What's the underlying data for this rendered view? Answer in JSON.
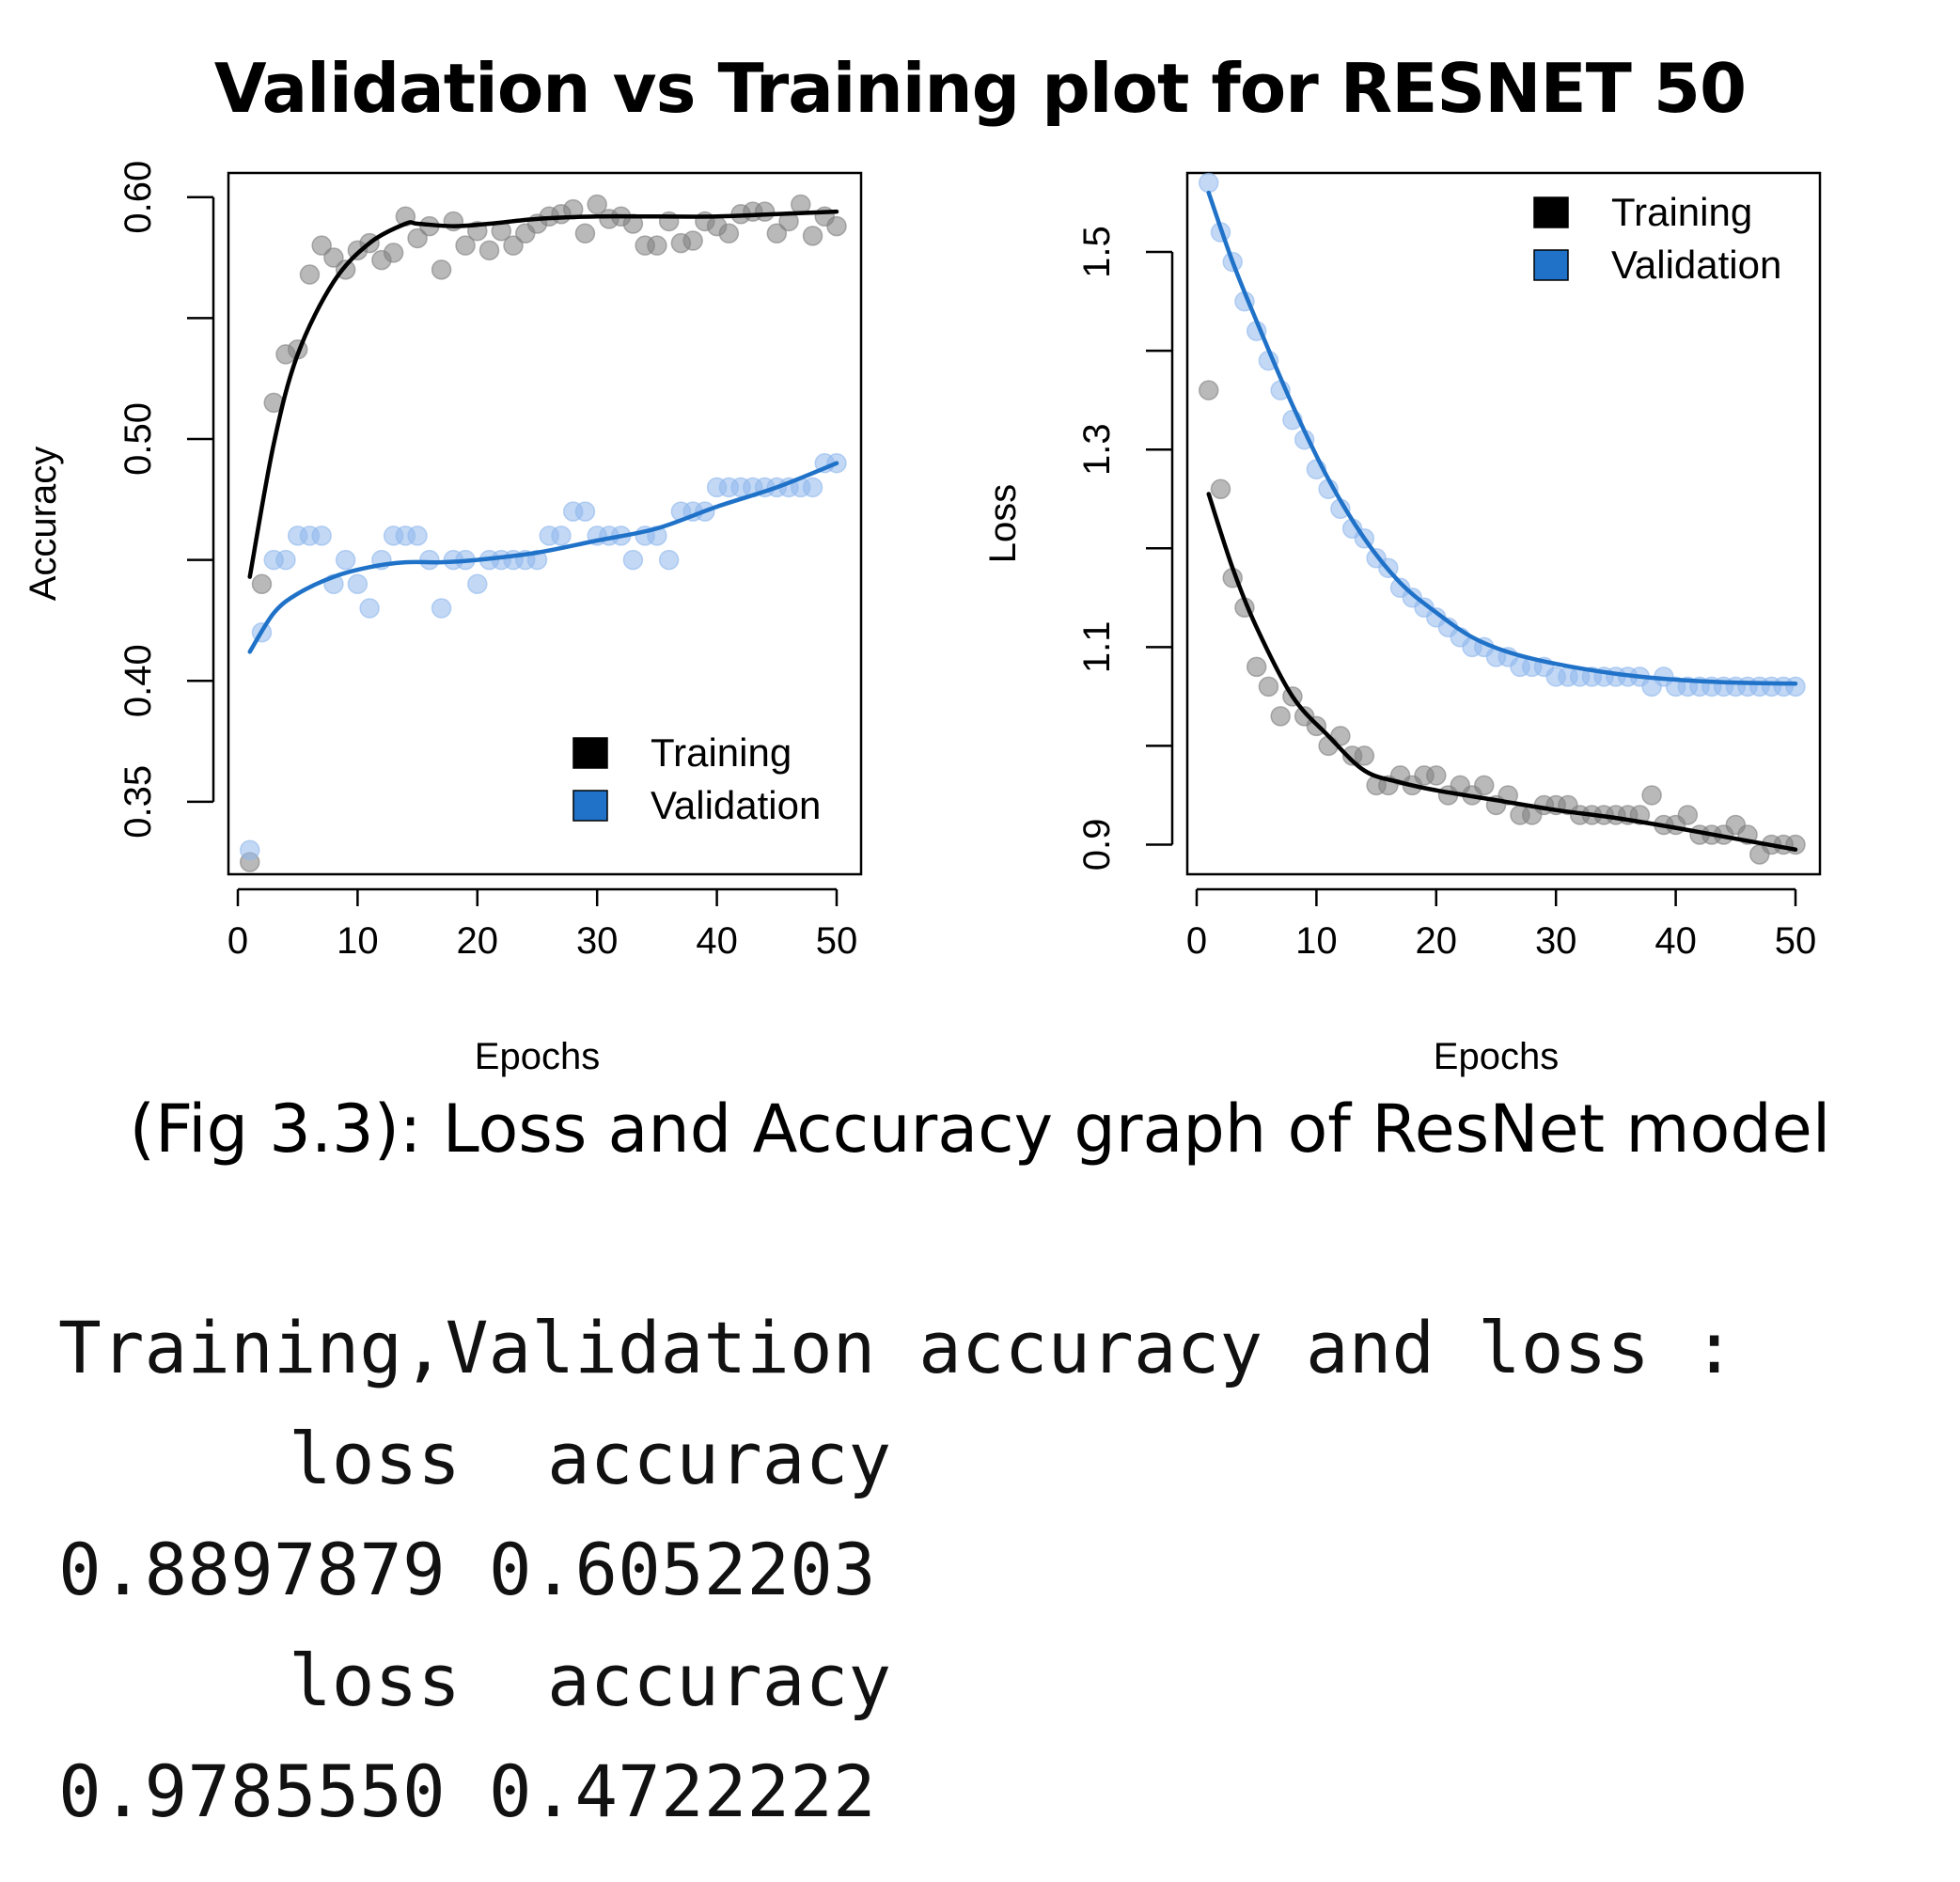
{
  "title": "Validation vs Training plot for RESNET 50",
  "caption": "(Fig 3.3): Loss and Accuracy graph of ResNet model",
  "colors": {
    "training": "#000000",
    "validation": "#1f72c8",
    "training_point": "#7f7f7f",
    "validation_point": "#8fb8ec"
  },
  "chart_data": [
    {
      "type": "scatter",
      "ylabel": "Accuracy",
      "xlabel": "Epochs",
      "xlim": [
        0,
        50
      ],
      "ylim": [
        0.32,
        0.61
      ],
      "xticks": [
        "0",
        "10",
        "20",
        "30",
        "40",
        "50"
      ],
      "yticks": [
        "0.35",
        "0.40",
        "0.50",
        "0.60"
      ],
      "ytick_marks": [
        0.35,
        0.4,
        0.45,
        0.5,
        0.55,
        0.6
      ],
      "legend": {
        "position": "bottom-right",
        "entries": [
          "Training",
          "Validation"
        ]
      },
      "series": [
        {
          "name": "Training",
          "x": [
            1,
            2,
            3,
            4,
            5,
            6,
            7,
            8,
            9,
            10,
            11,
            12,
            13,
            14,
            15,
            16,
            17,
            18,
            19,
            20,
            21,
            22,
            23,
            24,
            25,
            26,
            27,
            28,
            29,
            30,
            31,
            32,
            33,
            34,
            35,
            36,
            37,
            38,
            39,
            40,
            41,
            42,
            43,
            44,
            45,
            46,
            47,
            48,
            49,
            50
          ],
          "values": [
            0.325,
            0.44,
            0.515,
            0.535,
            0.537,
            0.568,
            0.58,
            0.575,
            0.57,
            0.578,
            0.581,
            0.574,
            0.577,
            0.592,
            0.583,
            0.588,
            0.57,
            0.59,
            0.58,
            0.586,
            0.578,
            0.586,
            0.58,
            0.585,
            0.589,
            0.592,
            0.593,
            0.595,
            0.585,
            0.597,
            0.591,
            0.592,
            0.589,
            0.58,
            0.58,
            0.59,
            0.581,
            0.582,
            0.59,
            0.588,
            0.585,
            0.593,
            0.594,
            0.594,
            0.585,
            0.59,
            0.597,
            0.584,
            0.592,
            0.588
          ],
          "trend": [
            [
              1,
              0.443
            ],
            [
              3,
              0.498
            ],
            [
              5,
              0.535
            ],
            [
              8,
              0.565
            ],
            [
              11,
              0.581
            ],
            [
              14,
              0.589
            ],
            [
              15,
              0.589
            ],
            [
              18,
              0.588
            ],
            [
              21,
              0.589
            ],
            [
              25,
              0.591
            ],
            [
              30,
              0.592
            ],
            [
              35,
              0.592
            ],
            [
              40,
              0.592
            ],
            [
              45,
              0.593
            ],
            [
              50,
              0.594
            ]
          ]
        },
        {
          "name": "Validation",
          "x": [
            1,
            2,
            3,
            4,
            5,
            6,
            7,
            8,
            9,
            10,
            11,
            12,
            13,
            14,
            15,
            16,
            17,
            18,
            19,
            20,
            21,
            22,
            23,
            24,
            25,
            26,
            27,
            28,
            29,
            30,
            31,
            32,
            33,
            34,
            35,
            36,
            37,
            38,
            39,
            40,
            41,
            42,
            43,
            44,
            45,
            46,
            47,
            48,
            49,
            50
          ],
          "values": [
            0.33,
            0.42,
            0.45,
            0.45,
            0.46,
            0.46,
            0.46,
            0.44,
            0.45,
            0.44,
            0.43,
            0.45,
            0.46,
            0.46,
            0.46,
            0.45,
            0.43,
            0.45,
            0.45,
            0.44,
            0.45,
            0.45,
            0.45,
            0.45,
            0.45,
            0.46,
            0.46,
            0.47,
            0.47,
            0.46,
            0.46,
            0.46,
            0.45,
            0.46,
            0.46,
            0.45,
            0.47,
            0.47,
            0.47,
            0.48,
            0.48,
            0.48,
            0.48,
            0.48,
            0.48,
            0.48,
            0.48,
            0.48,
            0.49,
            0.49
          ],
          "trend": [
            [
              1,
              0.412
            ],
            [
              3,
              0.428
            ],
            [
              5,
              0.436
            ],
            [
              8,
              0.443
            ],
            [
              11,
              0.447
            ],
            [
              14,
              0.449
            ],
            [
              17,
              0.449
            ],
            [
              20,
              0.45
            ],
            [
              25,
              0.453
            ],
            [
              30,
              0.458
            ],
            [
              35,
              0.463
            ],
            [
              40,
              0.472
            ],
            [
              45,
              0.48
            ],
            [
              50,
              0.49
            ]
          ]
        }
      ]
    },
    {
      "type": "scatter",
      "ylabel": "Loss",
      "xlabel": "Epochs",
      "xlim": [
        0,
        50
      ],
      "ylim": [
        0.87,
        1.58
      ],
      "xticks": [
        "0",
        "10",
        "20",
        "30",
        "40",
        "50"
      ],
      "yticks": [
        "0.9",
        "1.1",
        "1.3",
        "1.5"
      ],
      "ytick_marks": [
        0.9,
        1.0,
        1.1,
        1.2,
        1.3,
        1.4,
        1.5
      ],
      "legend": {
        "position": "top-right",
        "entries": [
          "Training",
          "Validation"
        ]
      },
      "series": [
        {
          "name": "Training",
          "x": [
            1,
            2,
            3,
            4,
            5,
            6,
            7,
            8,
            9,
            10,
            11,
            12,
            13,
            14,
            15,
            16,
            17,
            18,
            19,
            20,
            21,
            22,
            23,
            24,
            25,
            26,
            27,
            28,
            29,
            30,
            31,
            32,
            33,
            34,
            35,
            36,
            37,
            38,
            39,
            40,
            41,
            42,
            43,
            44,
            45,
            46,
            47,
            48,
            49,
            50
          ],
          "values": [
            1.36,
            1.26,
            1.17,
            1.14,
            1.08,
            1.06,
            1.03,
            1.05,
            1.03,
            1.02,
            1.0,
            1.01,
            0.99,
            0.99,
            0.96,
            0.96,
            0.97,
            0.96,
            0.97,
            0.97,
            0.95,
            0.96,
            0.95,
            0.96,
            0.94,
            0.95,
            0.93,
            0.93,
            0.94,
            0.94,
            0.94,
            0.93,
            0.93,
            0.93,
            0.93,
            0.93,
            0.93,
            0.95,
            0.92,
            0.92,
            0.93,
            0.91,
            0.91,
            0.91,
            0.92,
            0.91,
            0.89,
            0.9,
            0.9,
            0.9
          ],
          "trend": [
            [
              1,
              1.255
            ],
            [
              3,
              1.18
            ],
            [
              5,
              1.12
            ],
            [
              8,
              1.05
            ],
            [
              11,
              1.01
            ],
            [
              14,
              0.975
            ],
            [
              17,
              0.963
            ],
            [
              20,
              0.955
            ],
            [
              25,
              0.945
            ],
            [
              30,
              0.935
            ],
            [
              35,
              0.927
            ],
            [
              40,
              0.917
            ],
            [
              45,
              0.906
            ],
            [
              50,
              0.895
            ]
          ]
        },
        {
          "name": "Validation",
          "x": [
            1,
            2,
            3,
            4,
            5,
            6,
            7,
            8,
            9,
            10,
            11,
            12,
            13,
            14,
            15,
            16,
            17,
            18,
            19,
            20,
            21,
            22,
            23,
            24,
            25,
            26,
            27,
            28,
            29,
            30,
            31,
            32,
            33,
            34,
            35,
            36,
            37,
            38,
            39,
            40,
            41,
            42,
            43,
            44,
            45,
            46,
            47,
            48,
            49,
            50
          ],
          "values": [
            1.57,
            1.52,
            1.49,
            1.45,
            1.42,
            1.39,
            1.36,
            1.33,
            1.31,
            1.28,
            1.26,
            1.24,
            1.22,
            1.21,
            1.19,
            1.18,
            1.16,
            1.15,
            1.14,
            1.13,
            1.12,
            1.11,
            1.1,
            1.1,
            1.09,
            1.09,
            1.08,
            1.08,
            1.08,
            1.07,
            1.07,
            1.07,
            1.07,
            1.07,
            1.07,
            1.07,
            1.07,
            1.06,
            1.07,
            1.06,
            1.06,
            1.06,
            1.06,
            1.06,
            1.06,
            1.06,
            1.06,
            1.06,
            1.06,
            1.06
          ],
          "trend": [
            [
              1,
              1.56
            ],
            [
              3,
              1.49
            ],
            [
              5,
              1.43
            ],
            [
              8,
              1.345
            ],
            [
              11,
              1.27
            ],
            [
              14,
              1.21
            ],
            [
              17,
              1.165
            ],
            [
              20,
              1.135
            ],
            [
              23,
              1.11
            ],
            [
              26,
              1.095
            ],
            [
              30,
              1.083
            ],
            [
              35,
              1.073
            ],
            [
              40,
              1.067
            ],
            [
              45,
              1.064
            ],
            [
              50,
              1.063
            ]
          ]
        }
      ]
    }
  ],
  "console": {
    "header": "Training,Validation accuracy and loss :",
    "rows": [
      {
        "loss_label": "loss",
        "accuracy_label": "accuracy",
        "loss": "0.8897879",
        "accuracy": "0.6052203"
      },
      {
        "loss_label": "loss",
        "accuracy_label": "accuracy",
        "loss": "0.9785550",
        "accuracy": "0.4722222"
      }
    ]
  }
}
